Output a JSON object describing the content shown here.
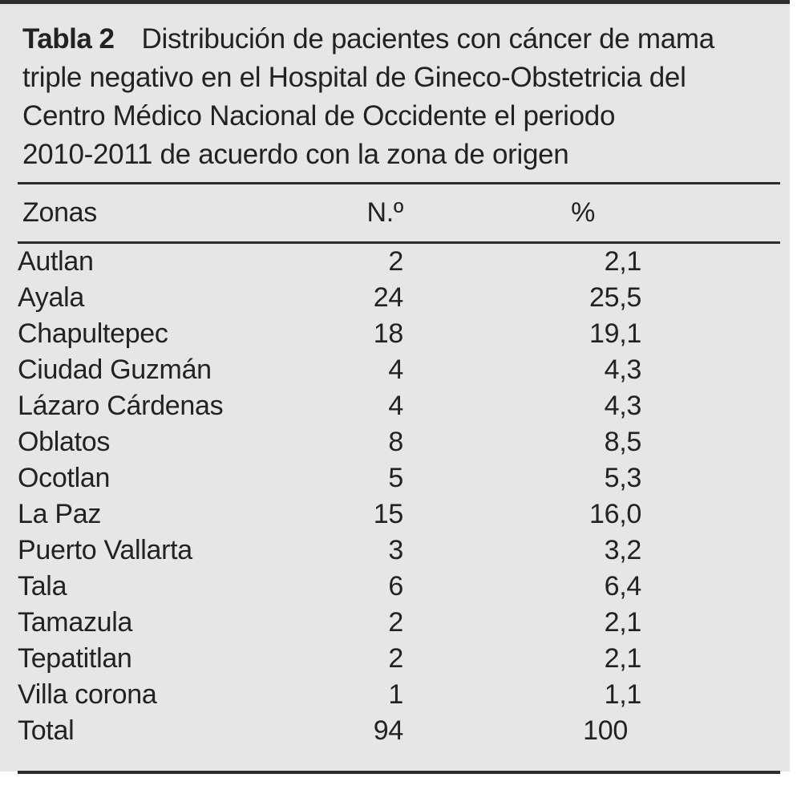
{
  "table": {
    "caption": {
      "label": "Tabla 2",
      "lines": [
        "Distribución de pacientes con cáncer de mama",
        "triple negativo en el Hospital de Gineco-Obstetricia del",
        "Centro Médico Nacional de Occidente el periodo",
        "2010-2011 de acuerdo con la zona de origen"
      ]
    },
    "columns": [
      "Zonas",
      "N.º",
      "%"
    ],
    "rows": [
      {
        "zone": "Autlan",
        "n": "2",
        "pct": "2,1"
      },
      {
        "zone": "Ayala",
        "n": "24",
        "pct": "25,5"
      },
      {
        "zone": "Chapultepec",
        "n": "18",
        "pct": "19,1"
      },
      {
        "zone": "Ciudad Guzmán",
        "n": "4",
        "pct": "4,3"
      },
      {
        "zone": "Lázaro Cárdenas",
        "n": "4",
        "pct": "4,3"
      },
      {
        "zone": "Oblatos",
        "n": "8",
        "pct": "8,5"
      },
      {
        "zone": "Ocotlan",
        "n": "5",
        "pct": "5,3"
      },
      {
        "zone": "La Paz",
        "n": "15",
        "pct": "16,0"
      },
      {
        "zone": "Puerto Vallarta",
        "n": "3",
        "pct": "3,2"
      },
      {
        "zone": "Tala",
        "n": "6",
        "pct": "6,4"
      },
      {
        "zone": "Tamazula",
        "n": "2",
        "pct": "2,1"
      },
      {
        "zone": "Tepatitlan",
        "n": "2",
        "pct": "2,1"
      },
      {
        "zone": "Villa corona",
        "n": "1",
        "pct": "1,1"
      },
      {
        "zone": "Total",
        "n": "94",
        "pct": "100"
      }
    ],
    "colors": {
      "panel_bg": "#e5e6e8",
      "text": "#222222",
      "rule": "#2b2b2b"
    }
  }
}
